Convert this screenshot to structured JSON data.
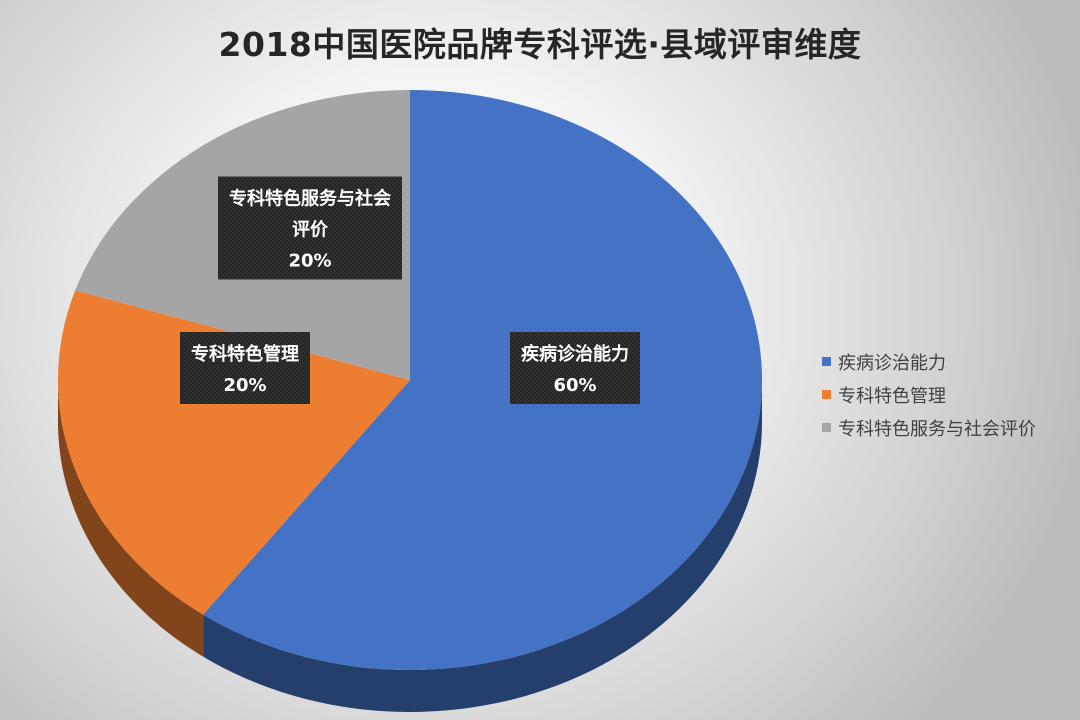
{
  "chart_data": {
    "type": "pie",
    "title": "2018中国医院品牌专科评选·县域评审维度",
    "categories": [
      "疾病诊治能力",
      "专科特色管理",
      "专科特色服务与社会评价"
    ],
    "values": [
      60,
      20,
      20
    ],
    "data_labels": [
      {
        "name": "疾病诊治能力",
        "value": "60%"
      },
      {
        "name": "专科特色管理",
        "value": "20%"
      },
      {
        "name": "专科特色服务与社会",
        "name2": "评价",
        "value": "20%"
      }
    ],
    "colors": [
      "#4472C4",
      "#ED7D31",
      "#A5A5A5"
    ],
    "legend": {
      "placement": "right",
      "entries": [
        "疾病诊治能力",
        "专科特色管理",
        "专科特色服务与社会评价"
      ]
    },
    "style": "3d-exploded-none"
  }
}
